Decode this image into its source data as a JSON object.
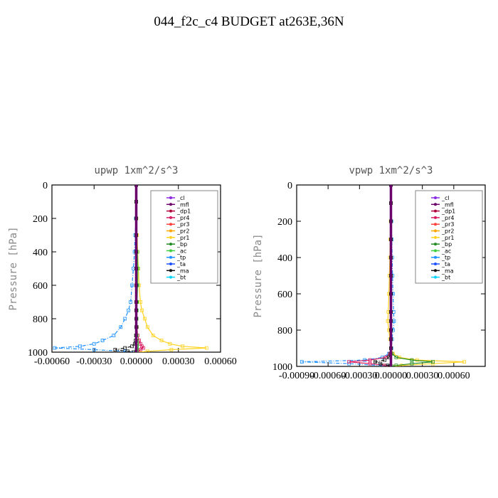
{
  "page_title": "044_f2c_c4  BUDGET at263E,36N",
  "legend_labels": [
    "_cl",
    "_mfl",
    "_dp1",
    "_pr4",
    "_pr3",
    "_pr2",
    "_pr1",
    "_bp",
    "_ac",
    "_tp",
    "_ta",
    "_ma",
    "_bt"
  ],
  "legend_colors": [
    "#8a2be2",
    "#6a006a",
    "#b0003a",
    "#d81b60",
    "#ff4040",
    "#ffa500",
    "#ffd21f",
    "#228b22",
    "#3ecf3e",
    "#1e90ff",
    "#1e50ff",
    "#111111",
    "#00d5ff"
  ],
  "chart_data": [
    {
      "type": "line",
      "title": "upwp   1xm^2/s^3",
      "ylabel": "Pressure [hPa]",
      "xlabel": "",
      "xlim": [
        -0.0006,
        0.0006
      ],
      "ylim": [
        1000,
        0
      ],
      "xticks": [
        -0.0006,
        -0.0003,
        0.0,
        0.0003,
        0.0006
      ],
      "xtick_labels": [
        "-0.00060",
        "-0.00030",
        "0.00000",
        "0.00030",
        "0.00060"
      ],
      "yticks": [
        0,
        200,
        400,
        600,
        800,
        1000
      ],
      "ytick_labels": [
        "0",
        "200",
        "400",
        "600",
        "800",
        "1000"
      ],
      "legend_position": "top-right",
      "pressure": [
        0,
        100,
        200,
        300,
        400,
        500,
        600,
        700,
        750,
        800,
        850,
        900,
        930,
        950,
        965,
        975,
        985,
        995,
        1000
      ],
      "series": [
        {
          "name": "_tp",
          "color": "#1e90ff",
          "x": [
            0,
            0,
            -3e-06,
            -8e-06,
            -1.2e-05,
            -2e-05,
            -3e-05,
            -4e-05,
            -5.5e-05,
            -8e-05,
            -0.00011,
            -0.00016,
            -0.00024,
            -0.0003,
            -0.0004,
            -0.00058,
            -0.0003,
            -8e-05,
            -2e-05
          ]
        },
        {
          "name": "_pr1",
          "color": "#ffd21f",
          "x": [
            0,
            0,
            2e-06,
            6e-06,
            1e-05,
            1.5e-05,
            2e-05,
            3e-05,
            4e-05,
            6e-05,
            8e-05,
            0.00012,
            0.00018,
            0.00024,
            0.00033,
            0.0005,
            0.00025,
            8e-05,
            2e-05
          ]
        },
        {
          "name": "_pr4",
          "color": "#d81b60",
          "x": [
            0,
            0,
            0,
            0,
            0,
            0,
            0,
            0,
            0,
            2e-06,
            5e-06,
            1e-05,
            2e-05,
            3e-05,
            4e-05,
            5e-05,
            3e-05,
            1e-05,
            0
          ]
        },
        {
          "name": "_bp",
          "color": "#228b22",
          "x": [
            0,
            0,
            0,
            0,
            0,
            4e-06,
            6e-06,
            4e-06,
            2e-06,
            2e-06,
            2e-06,
            2e-06,
            3e-06,
            3e-06,
            4e-06,
            4e-06,
            2e-06,
            1e-06,
            0
          ]
        },
        {
          "name": "_ac",
          "color": "#3ecf3e",
          "x": [
            0,
            0,
            0,
            0,
            8e-06,
            1.2e-05,
            1e-05,
            6e-06,
            4e-06,
            3e-06,
            3e-06,
            3e-06,
            4e-06,
            5e-06,
            6e-06,
            5e-06,
            3e-06,
            1e-06,
            0
          ]
        },
        {
          "name": "_ma",
          "color": "#111111",
          "x": [
            0,
            0,
            0,
            0,
            0,
            0,
            0,
            0,
            0,
            0,
            0,
            -2e-06,
            -4e-06,
            -1e-05,
            -3e-05,
            -8e-05,
            -0.00015,
            -6e-05,
            -2e-05
          ]
        },
        {
          "name": "_mfl",
          "color": "#6a006a",
          "x": [
            0,
            0,
            0,
            0,
            0,
            0,
            0,
            0,
            0,
            0,
            0,
            0,
            0,
            0,
            0,
            0,
            0,
            0,
            0
          ]
        }
      ]
    },
    {
      "type": "line",
      "title": "vpwp   1xm^2/s^3",
      "ylabel": "Pressure [hPa]",
      "xlabel": "",
      "xlim": [
        -0.0009,
        0.0009
      ],
      "ylim": [
        1000,
        0
      ],
      "xticks": [
        -0.0009,
        -0.0006,
        -0.0003,
        0.0,
        0.0003,
        0.0006
      ],
      "xtick_labels": [
        "-0.00090",
        "-0.00060",
        "-0.00030",
        "0.00000",
        "0.00030",
        "0.00060"
      ],
      "yticks": [
        0,
        200,
        400,
        600,
        800,
        1000
      ],
      "ytick_labels": [
        "0",
        "200",
        "400",
        "600",
        "800",
        "1000"
      ],
      "legend_position": "top-right",
      "pressure": [
        0,
        100,
        200,
        300,
        400,
        500,
        600,
        700,
        750,
        800,
        850,
        900,
        930,
        950,
        965,
        975,
        985,
        995,
        1000
      ],
      "series": [
        {
          "name": "_tp",
          "color": "#1e90ff",
          "x": [
            0,
            0,
            5e-06,
            8e-06,
            1.2e-05,
            1.5e-05,
            2e-05,
            2.5e-05,
            3e-05,
            2e-05,
            1e-05,
            5e-06,
            -2e-05,
            -8e-05,
            -0.00025,
            -0.00085,
            -0.0004,
            -0.0001,
            -2e-05
          ]
        },
        {
          "name": "_pr1",
          "color": "#ffd21f",
          "x": [
            0,
            0,
            -3e-06,
            -6e-06,
            -1e-05,
            -1.5e-05,
            -2e-05,
            -2.5e-05,
            -3e-05,
            -2e-05,
            -1e-05,
            0,
            2e-05,
            8e-05,
            0.00025,
            0.0007,
            0.0004,
            0.0001,
            2e-05
          ]
        },
        {
          "name": "_pr4",
          "color": "#d81b60",
          "x": [
            0,
            0,
            0,
            0,
            0,
            0,
            0,
            0,
            0,
            0,
            0,
            0,
            -1e-05,
            -5e-05,
            -0.0002,
            -0.0004,
            -0.0002,
            -6e-05,
            -1e-05
          ]
        },
        {
          "name": "_bp",
          "color": "#228b22",
          "x": [
            0,
            0,
            0,
            0,
            0,
            0,
            0,
            0,
            0,
            0,
            0,
            0,
            1e-05,
            5e-05,
            0.0002,
            0.0004,
            0.0002,
            5e-05,
            1e-05
          ]
        },
        {
          "name": "_ma",
          "color": "#111111",
          "x": [
            0,
            0,
            0,
            0,
            0,
            0,
            0,
            0,
            0,
            0,
            0,
            0,
            -5e-06,
            -2e-05,
            -6e-05,
            -0.00015,
            -0.0001,
            -3e-05,
            -1e-05
          ]
        },
        {
          "name": "_mfl",
          "color": "#6a006a",
          "x": [
            0,
            0,
            0,
            0,
            0,
            0,
            0,
            0,
            0,
            0,
            0,
            0,
            0,
            0,
            0,
            0,
            0,
            0,
            0
          ]
        }
      ]
    }
  ]
}
